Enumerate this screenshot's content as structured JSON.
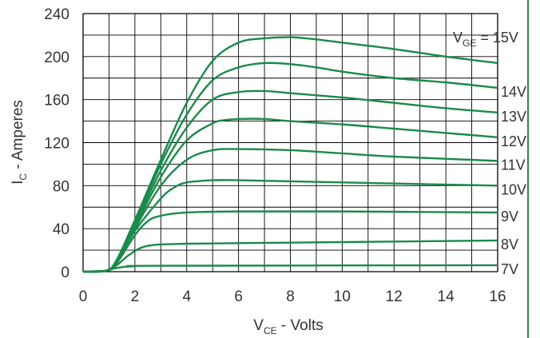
{
  "chart_data": {
    "type": "line",
    "xlabel": {
      "main": "V",
      "sub": "CE",
      "rest": " - Volts"
    },
    "ylabel": {
      "main": "I",
      "sub": "C",
      "rest": " - Amperes"
    },
    "xlim": [
      0,
      16
    ],
    "ylim": [
      0,
      240
    ],
    "x_ticks": [
      "0",
      "2",
      "4",
      "6",
      "8",
      "10",
      "12",
      "14",
      "16"
    ],
    "y_ticks": [
      "0",
      "40",
      "80",
      "120",
      "160",
      "200",
      "240"
    ],
    "grid": true,
    "line_color": "#1a8a4a",
    "gate_label": {
      "main": "V",
      "sub": "GE",
      "rest": " = 15V"
    },
    "series": [
      {
        "name": "7V",
        "x": [
          0,
          0.9,
          1.2,
          1.6,
          2.0,
          3.0,
          16
        ],
        "y": [
          0,
          1,
          3,
          4.5,
          5,
          5.5,
          6
        ]
      },
      {
        "name": "8V",
        "x": [
          0,
          0.9,
          1.3,
          1.8,
          2.5,
          4.0,
          8.0,
          12.0,
          16
        ],
        "y": [
          0,
          1,
          6,
          16,
          24,
          26,
          27,
          28,
          29
        ]
      },
      {
        "name": "9V",
        "x": [
          0,
          0.9,
          1.3,
          2.0,
          2.5,
          3.0,
          4.0,
          6.0,
          10.0,
          16
        ],
        "y": [
          0,
          1,
          8,
          34,
          47,
          52,
          55,
          56,
          56,
          55
        ]
      },
      {
        "name": "10V",
        "x": [
          0,
          0.9,
          1.3,
          2.0,
          3.0,
          3.5,
          4.0,
          5.0,
          6.0,
          8.0,
          12.0,
          16
        ],
        "y": [
          0,
          1,
          9,
          38,
          68,
          78,
          83,
          85,
          85,
          84,
          82,
          80
        ]
      },
      {
        "name": "11V",
        "x": [
          0,
          0.9,
          1.3,
          2.0,
          3.0,
          4.0,
          5.0,
          6.0,
          8.0,
          10.0,
          12.0,
          16
        ],
        "y": [
          0,
          1,
          9,
          40,
          80,
          104,
          113,
          114,
          113,
          110,
          107,
          103
        ]
      },
      {
        "name": "12V",
        "x": [
          0,
          0.9,
          1.3,
          2.0,
          3.0,
          4.0,
          5.0,
          5.5,
          6.0,
          7.0,
          8.0,
          10.0,
          12.0,
          14.0,
          16
        ],
        "y": [
          0,
          1,
          10,
          42,
          88,
          122,
          138,
          141,
          142,
          142,
          140,
          137,
          133,
          129,
          125
        ]
      },
      {
        "name": "13V",
        "x": [
          0,
          0.9,
          1.3,
          2.0,
          3.0,
          4.0,
          5.0,
          6.0,
          7.0,
          8.0,
          10.0,
          12.0,
          14.0,
          16
        ],
        "y": [
          0,
          1,
          10,
          44,
          94,
          134,
          160,
          167,
          168,
          166,
          162,
          157,
          152,
          148
        ]
      },
      {
        "name": "14V",
        "x": [
          0,
          0.9,
          1.3,
          2.0,
          3.0,
          4.0,
          5.0,
          6.0,
          7.0,
          8.0,
          9.0,
          10.0,
          12.0,
          14.0,
          16
        ],
        "y": [
          0,
          1,
          11,
          46,
          100,
          146,
          178,
          190,
          194,
          193,
          190,
          186,
          180,
          176,
          171
        ]
      },
      {
        "name": "15V",
        "x": [
          0,
          0.9,
          1.3,
          2.0,
          3.0,
          4.0,
          5.0,
          6.0,
          7.0,
          8.0,
          9.0,
          10.0,
          12.0,
          14.0,
          16
        ],
        "y": [
          0,
          1,
          11,
          48,
          104,
          157,
          196,
          213,
          217,
          218,
          216,
          213,
          207,
          200,
          194
        ]
      }
    ]
  }
}
